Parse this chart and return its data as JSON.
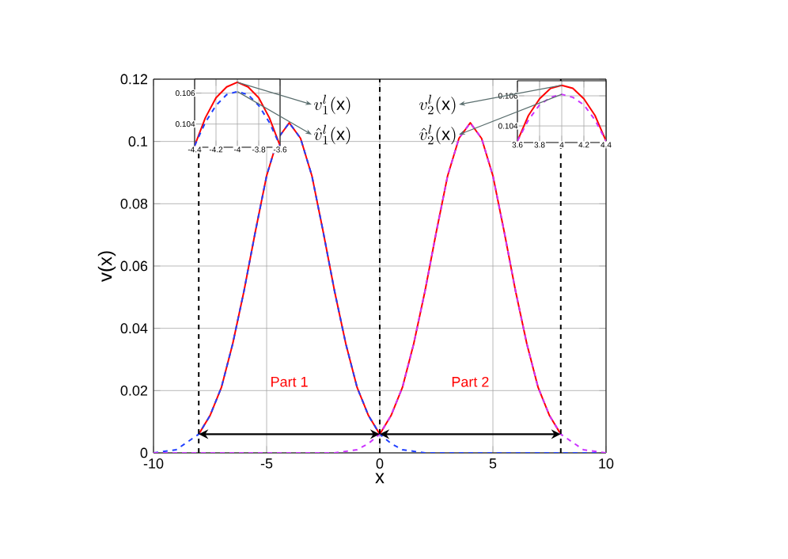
{
  "chart_data": [
    {
      "type": "line",
      "xlabel": "x",
      "ylabel": "v(x)",
      "xlim": [
        -10,
        10
      ],
      "ylim": [
        0,
        0.12
      ],
      "xticks": [
        -10,
        -5,
        0,
        5,
        10
      ],
      "yticks": [
        0,
        0.02,
        0.04,
        0.06,
        0.08,
        0.1,
        0.12
      ],
      "grid": true,
      "series": [
        {
          "color": "#ff0000",
          "line_style": "solid",
          "x": [
            -8,
            -7.5,
            -7,
            -6.5,
            -6,
            -5.5,
            -5,
            -4.5,
            -4,
            -3.5,
            -3,
            -2.5,
            -2,
            -1.5,
            -1,
            -0.5,
            0,
            0.5,
            1,
            1.5,
            2,
            2.5,
            3,
            3.5,
            4,
            4.5,
            5,
            5.5,
            6,
            6.5,
            7,
            7.5,
            8
          ],
          "values": [
            0.006,
            0.012,
            0.021,
            0.035,
            0.052,
            0.071,
            0.089,
            0.101,
            0.106,
            0.101,
            0.089,
            0.071,
            0.052,
            0.035,
            0.021,
            0.012,
            0.006,
            0.012,
            0.021,
            0.035,
            0.052,
            0.071,
            0.089,
            0.101,
            0.106,
            0.101,
            0.089,
            0.071,
            0.052,
            0.035,
            0.021,
            0.012,
            0.006
          ]
        },
        {
          "color": "#2040ff",
          "line_style": "dashed",
          "x": [
            -10,
            -9,
            -8,
            -7.5,
            -7,
            -6.5,
            -6,
            -5.5,
            -5,
            -4.5,
            -4,
            -3.5,
            -3,
            -2.5,
            -2,
            -1.5,
            -1,
            -0.5,
            0,
            0.5,
            1,
            2,
            4,
            6,
            8,
            10
          ],
          "values": [
            0,
            0.001,
            0.006,
            0.012,
            0.021,
            0.035,
            0.052,
            0.071,
            0.089,
            0.101,
            0.106,
            0.101,
            0.089,
            0.071,
            0.052,
            0.035,
            0.021,
            0.012,
            0.006,
            0.003,
            0.001,
            0,
            0,
            0,
            0,
            0
          ]
        },
        {
          "color": "#cc33ff",
          "line_style": "dashed",
          "x": [
            -10,
            -8,
            -6,
            -4,
            -2,
            -1,
            -0.5,
            0,
            0.5,
            1,
            1.5,
            2,
            2.5,
            3,
            3.5,
            4,
            4.5,
            5,
            5.5,
            6,
            6.5,
            7,
            7.5,
            8,
            9,
            10
          ],
          "values": [
            0,
            0,
            0,
            0,
            0,
            0.001,
            0.003,
            0.006,
            0.012,
            0.021,
            0.035,
            0.052,
            0.071,
            0.089,
            0.101,
            0.106,
            0.101,
            0.089,
            0.071,
            0.052,
            0.035,
            0.021,
            0.012,
            0.006,
            0.001,
            0
          ]
        }
      ],
      "ref_lines": [
        {
          "axis": "x",
          "value": -8,
          "color": "#000000",
          "line_style": "dashed"
        },
        {
          "axis": "x",
          "value": 0,
          "color": "#000000",
          "line_style": "dashed"
        },
        {
          "axis": "x",
          "value": 8,
          "color": "#000000",
          "line_style": "dashed"
        }
      ],
      "annotations": [
        "Part 1",
        "Part 2"
      ]
    },
    {
      "type": "line",
      "xlim": [
        -4.4,
        -3.6
      ],
      "ylim": [
        0.1025,
        0.1069
      ],
      "xticks": [
        -4.4,
        -4.2,
        -4,
        -3.8,
        -3.6
      ],
      "yticks": [
        0.104,
        0.106
      ],
      "grid": true,
      "series": [
        {
          "name": "v_1^l(\\mathrm{x})",
          "color": "#ff0000",
          "line_style": "solid",
          "x": [
            -4.4,
            -4.3,
            -4.2,
            -4.1,
            -4,
            -3.9,
            -3.8,
            -3.7,
            -3.6
          ],
          "values": [
            0.1026,
            0.1044,
            0.1057,
            0.1064,
            0.1067,
            0.1064,
            0.1057,
            0.1044,
            0.1026
          ]
        },
        {
          "name": "\\hat{v}_1^l(\\mathrm{x})",
          "color": "#2040ff",
          "line_style": "dashed",
          "x": [
            -4.4,
            -4.3,
            -4.2,
            -4.1,
            -4,
            -3.9,
            -3.8,
            -3.7,
            -3.6
          ],
          "values": [
            0.1026,
            0.1041,
            0.1052,
            0.1059,
            0.1061,
            0.1059,
            0.1052,
            0.1041,
            0.1026
          ]
        }
      ]
    },
    {
      "type": "line",
      "xlim": [
        3.6,
        4.4
      ],
      "ylim": [
        0.1029,
        0.107
      ],
      "xticks": [
        3.6,
        3.8,
        4,
        4.2,
        4.4
      ],
      "yticks": [
        0.104,
        0.106
      ],
      "grid": true,
      "series": [
        {
          "name": "v_2^l(\\mathrm{x})",
          "color": "#ff0000",
          "line_style": "solid",
          "x": [
            3.6,
            3.7,
            3.8,
            3.9,
            4,
            4.1,
            4.2,
            4.3,
            4.4
          ],
          "values": [
            0.103,
            0.1047,
            0.1058,
            0.1065,
            0.1067,
            0.1065,
            0.1058,
            0.1047,
            0.103
          ]
        },
        {
          "name": "\\hat{v}_2^l(\\mathrm{x})",
          "color": "#cc33ff",
          "line_style": "dashed",
          "x": [
            3.6,
            3.7,
            3.8,
            3.9,
            4,
            4.1,
            4.2,
            4.3,
            4.4
          ],
          "values": [
            0.103,
            0.1044,
            0.1054,
            0.1059,
            0.1061,
            0.1059,
            0.1054,
            0.1044,
            0.103
          ]
        }
      ]
    }
  ]
}
